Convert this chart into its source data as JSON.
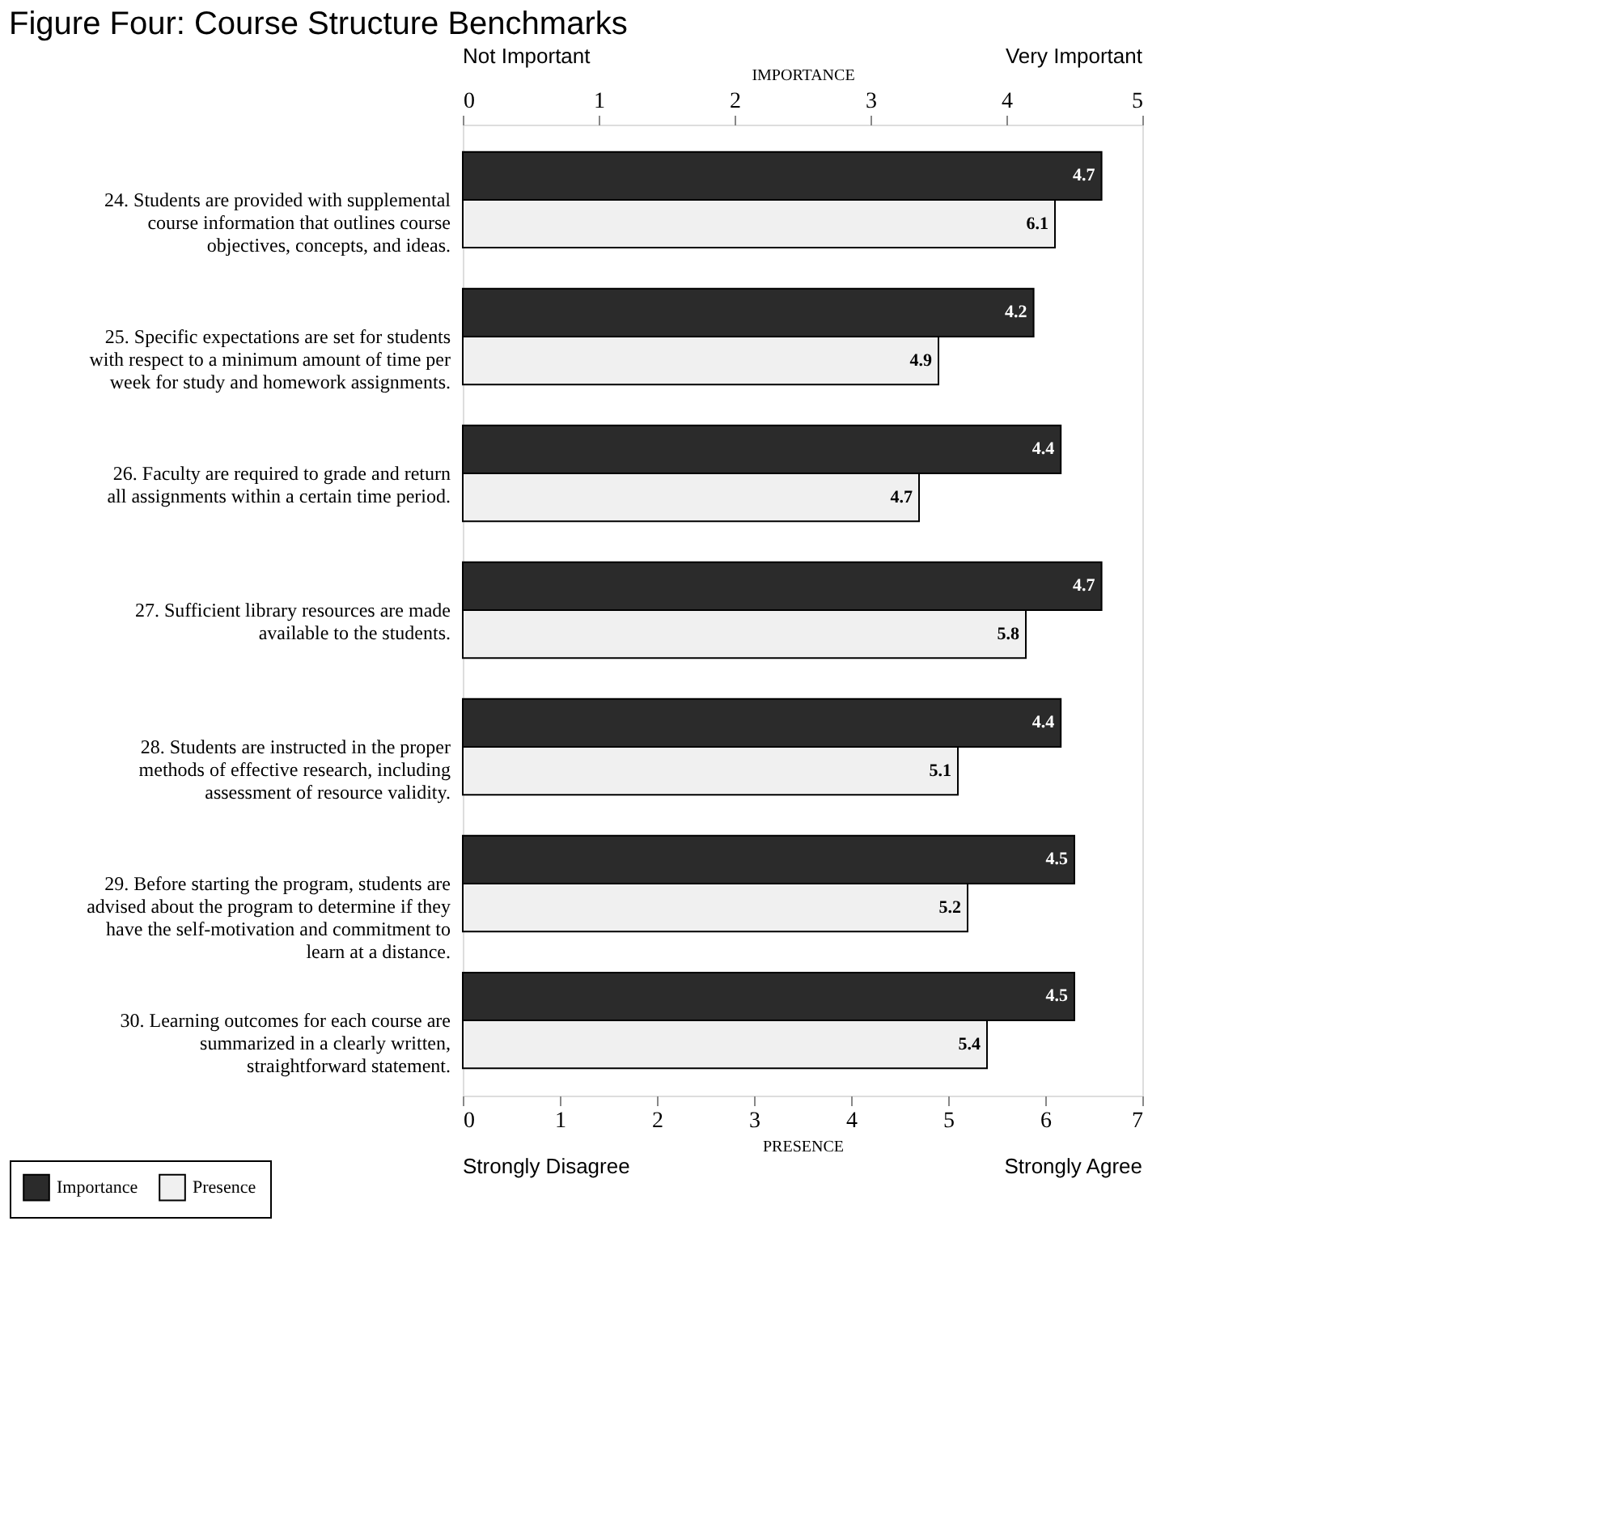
{
  "chart_data": {
    "type": "bar",
    "orientation": "horizontal",
    "title": "Figure Four: Course Structure Benchmarks",
    "categories": [
      "24. Students are provided with supplemental course information that outlines course objectives, concepts, and ideas.",
      "25. Specific expectations are set for students with respect to a minimum amount of time per week for study and homework assignments.",
      "26. Faculty are required to grade and return all assignments within a certain time period.",
      "27. Sufficient library resources are made available to the students.",
      "28. Students are instructed in the proper methods of effective research, including assessment of resource validity.",
      "29. Before starting the program, students are advised about the program to determine if they have the self-motivation and commitment to learn at a distance.",
      "30. Learning outcomes for each course are summarized in a clearly written, straightforward statement."
    ],
    "series": [
      {
        "name": "Importance",
        "color": "#2b2b2b",
        "axis": "x2",
        "values": [
          4.7,
          4.2,
          4.4,
          4.7,
          4.4,
          4.5,
          4.5
        ]
      },
      {
        "name": "Presence",
        "color": "#f0f0f0",
        "values": [
          6.1,
          4.9,
          4.7,
          5.8,
          5.1,
          5.2,
          5.4
        ]
      }
    ],
    "xlabel": "PRESENCE",
    "x2label": "IMPORTANCE",
    "xlim": [
      0,
      7
    ],
    "xticks": [
      0,
      1,
      2,
      3,
      4,
      5,
      6,
      7
    ],
    "x2lim": [
      0,
      5
    ],
    "x2ticks": [
      0,
      1,
      2,
      3,
      4,
      5
    ],
    "annotations": [
      "Not Important",
      "Very Important",
      "Strongly Disagree",
      "Strongly Agree"
    ],
    "data_labels": true,
    "legend": "bottom left",
    "grid": false
  }
}
